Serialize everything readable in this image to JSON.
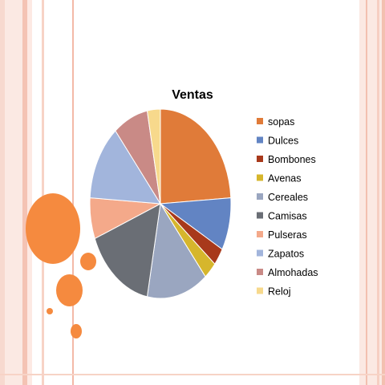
{
  "slide": {
    "background": "#ffffff",
    "decor_color": "#f58a3f"
  },
  "chart_data": {
    "type": "pie",
    "title": "Ventas",
    "legend_position": "right",
    "start_angle": "top, clockwise",
    "categories": [
      "sopas",
      "Dulces",
      "Bombones",
      "Avenas",
      "Cereales",
      "Camisas",
      "Pulseras",
      "Zapatos",
      "Almohadas",
      "Reloj"
    ],
    "values": [
      24,
      9,
      3,
      3,
      14,
      16,
      7,
      13,
      8,
      3
    ],
    "colors": [
      "#e07b39",
      "#6284c3",
      "#a8391b",
      "#d6b62c",
      "#9aa6c0",
      "#6a6e75",
      "#f4a98a",
      "#a2b5dc",
      "#c98a86",
      "#f7d98c"
    ]
  }
}
